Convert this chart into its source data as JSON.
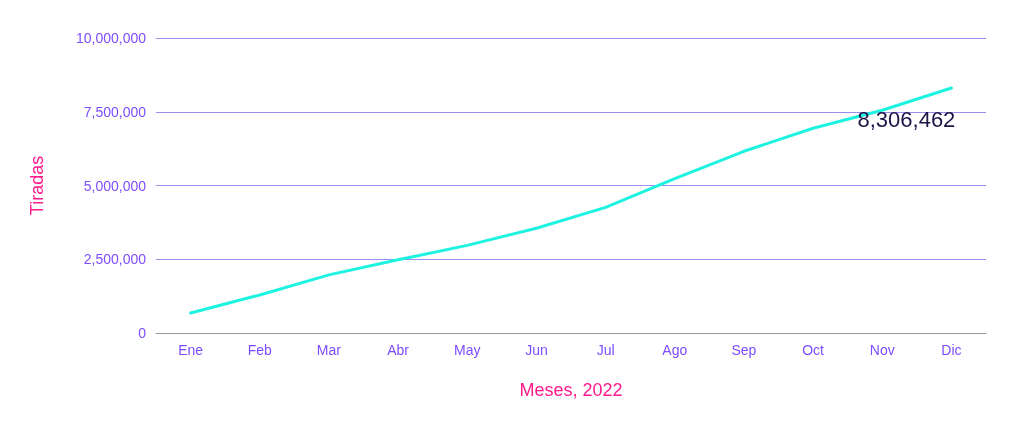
{
  "chart_data": {
    "type": "line",
    "xlabel": "Meses, 2022",
    "ylabel": "Tiradas",
    "categories": [
      "Ene",
      "Feb",
      "Mar",
      "Abr",
      "May",
      "Jun",
      "Jul",
      "Ago",
      "Sep",
      "Oct",
      "Nov",
      "Dic"
    ],
    "series": [
      {
        "color": "#1ef2e0",
        "values": [
          680000,
          1290000,
          1970000,
          2480000,
          2970000,
          3550000,
          4260000,
          5230000,
          6160000,
          6940000,
          7550000,
          8306462
        ],
        "value_labels": [
          null,
          null,
          null,
          null,
          null,
          null,
          null,
          null,
          null,
          null,
          null,
          "8,306,462"
        ]
      }
    ],
    "ylim": [
      0,
      10000000
    ],
    "yticks": [
      0,
      {
        "value": 2500000,
        "label": "2,500,000"
      },
      {
        "value": 5000000,
        "label": "5,000,000"
      },
      {
        "value": 7500000,
        "label": "7,500,000"
      },
      {
        "value": 10000000,
        "label": "10,000,000"
      }
    ],
    "grid": "y",
    "marker": "none",
    "line_style": "solid"
  }
}
